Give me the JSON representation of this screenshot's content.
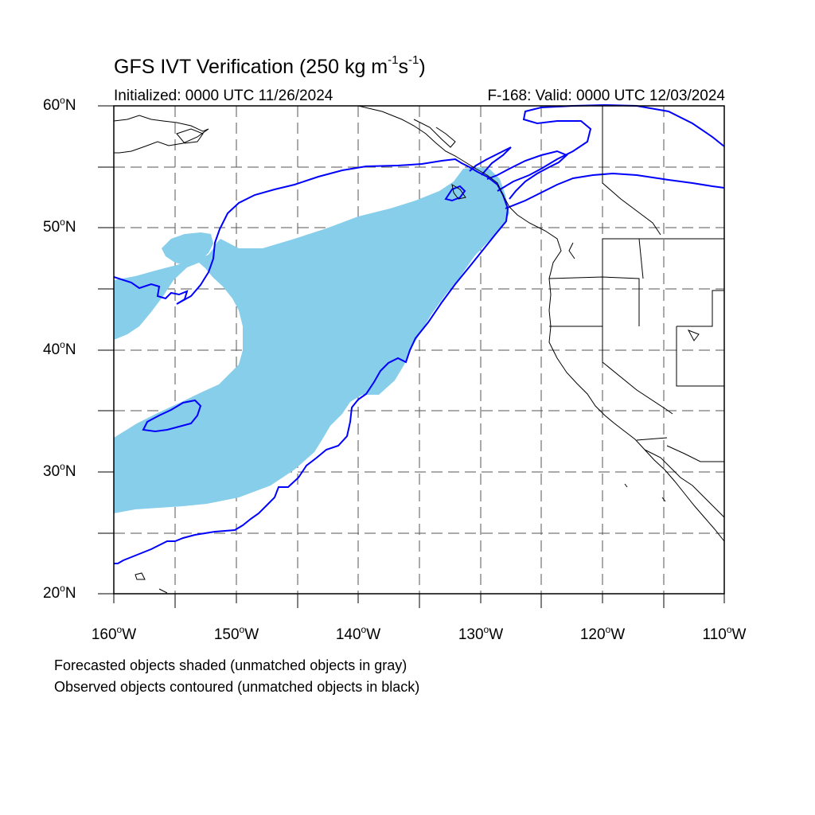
{
  "title": {
    "text": "GFS IVT Verification (250 kg m",
    "exp1": "-1",
    "mid": "s",
    "exp2": "-1",
    "end": ")"
  },
  "subtitle_left": "Initialized: 0000 UTC 11/26/2024",
  "subtitle_right": "F-168: Valid: 0000 UTC 12/03/2024",
  "lat_labels": [
    {
      "num": "60",
      "suffix": "N"
    },
    {
      "num": "50",
      "suffix": "N"
    },
    {
      "num": "40",
      "suffix": "N"
    },
    {
      "num": "30",
      "suffix": "N"
    },
    {
      "num": "20",
      "suffix": "N"
    }
  ],
  "lon_labels": [
    {
      "num": "160",
      "suffix": "W"
    },
    {
      "num": "150",
      "suffix": "W"
    },
    {
      "num": "140",
      "suffix": "W"
    },
    {
      "num": "130",
      "suffix": "W"
    },
    {
      "num": "120",
      "suffix": "W"
    },
    {
      "num": "110",
      "suffix": "W"
    }
  ],
  "notes": [
    "Forecasted objects shaded (unmatched objects in gray)",
    "Observed objects contoured (unmatched objects in black)"
  ],
  "colors": {
    "forecast_fill": "#87ceeb",
    "observed_contour": "#0000ff",
    "coastline": "#000000",
    "gridline": "#555555"
  },
  "map": {
    "projection": "cylindrical equidistant",
    "lon_range": [
      -160,
      -110
    ],
    "lat_range": [
      20,
      60
    ],
    "grid": "dashed every 5 degrees"
  }
}
